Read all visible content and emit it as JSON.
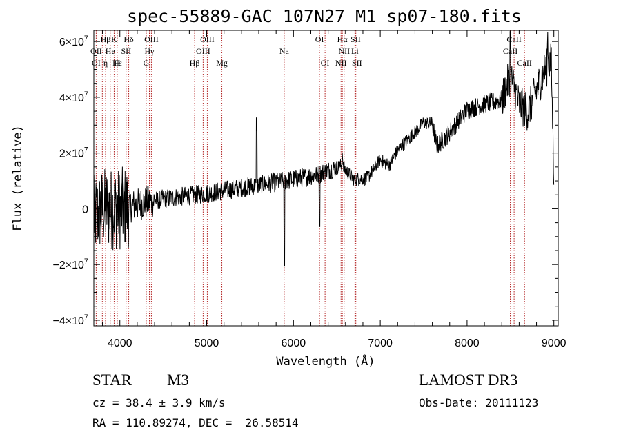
{
  "chart_data": {
    "type": "line",
    "title": "spec-55889-GAC_107N27_M1_sp07-180.fits",
    "xlabel": "Wavelength (Å)",
    "ylabel": "Flux (relative)",
    "xlim": [
      3700,
      9050
    ],
    "ylim": [
      -42000000.0,
      64000000.0
    ],
    "x_ticks": [
      4000,
      5000,
      6000,
      7000,
      8000,
      9000
    ],
    "x_tick_labels": [
      "4000",
      "5000",
      "6000",
      "7000",
      "8000",
      "9000"
    ],
    "y_ticks": [
      {
        "value": -40000000.0,
        "mantissa": "−4×10",
        "exp": "7"
      },
      {
        "value": -20000000.0,
        "mantissa": "−2×10",
        "exp": "7"
      },
      {
        "value": 0,
        "mantissa": "0",
        "exp": ""
      },
      {
        "value": 20000000.0,
        "mantissa": "2×10",
        "exp": "7"
      },
      {
        "value": 40000000.0,
        "mantissa": "4×10",
        "exp": "7"
      },
      {
        "value": 60000000.0,
        "mantissa": "6×10",
        "exp": "7"
      }
    ],
    "continuum": [
      [
        3700,
        -3000000.0
      ],
      [
        3800,
        0.0
      ],
      [
        4000,
        0.0
      ],
      [
        4200,
        1500000.0
      ],
      [
        4500,
        3500000.0
      ],
      [
        5000,
        5500000.0
      ],
      [
        5500,
        8000000.0
      ],
      [
        6000,
        10500000.0
      ],
      [
        6300,
        12500000.0
      ],
      [
        6550,
        15500000.0
      ],
      [
        6700,
        10500000.0
      ],
      [
        6850,
        11000000.0
      ],
      [
        7000,
        17500000.0
      ],
      [
        7100,
        15500000.0
      ],
      [
        7200,
        21000000.0
      ],
      [
        7400,
        27500000.0
      ],
      [
        7500,
        31000000.0
      ],
      [
        7600,
        30500000.0
      ],
      [
        7650,
        22500000.0
      ],
      [
        7750,
        25500000.0
      ],
      [
        8000,
        35500000.0
      ],
      [
        8200,
        37500000.0
      ],
      [
        8400,
        39000000.0
      ],
      [
        8500,
        48000000.0
      ],
      [
        8600,
        37500000.0
      ],
      [
        8700,
        34500000.0
      ],
      [
        8800,
        42500000.0
      ],
      [
        8900,
        50000000.0
      ],
      [
        8970,
        53000000.0
      ],
      [
        9000,
        12000000.0
      ]
    ],
    "features": [
      {
        "x": 5577,
        "dy": 22000000.0
      },
      {
        "x": 5893,
        "dy": -29000000.0
      },
      {
        "x": 6300,
        "dy": -16000000.0
      },
      {
        "x": 6563,
        "dy": 5000000.0
      },
      {
        "x": 8498,
        "dy": 13000000.0
      },
      {
        "x": 8930,
        "dy": 10000000.0
      }
    ],
    "spectral_lines": [
      {
        "label": "Hβ",
        "x": 3835,
        "row": 0
      },
      {
        "label": "K",
        "x": 3934,
        "row": 0
      },
      {
        "label": "Hδ",
        "x": 4102,
        "row": 0
      },
      {
        "label": "OIII",
        "x": 4363,
        "row": 0
      },
      {
        "label": "OIII",
        "x": 5007,
        "row": 0
      },
      {
        "label": "OI",
        "x": 6300,
        "row": 0
      },
      {
        "label": "Hα",
        "x": 6563,
        "row": 0
      },
      {
        "label": "SII",
        "x": 6716,
        "row": 0
      },
      {
        "label": "CaII",
        "x": 8542,
        "row": 0
      },
      {
        "label": "OII",
        "x": 3727,
        "row": 1
      },
      {
        "label": "He",
        "x": 3889,
        "row": 1
      },
      {
        "label": "SII",
        "x": 4072,
        "row": 1
      },
      {
        "label": "Hγ",
        "x": 4340,
        "row": 1
      },
      {
        "label": "OIII",
        "x": 4959,
        "row": 1
      },
      {
        "label": "Na",
        "x": 5893,
        "row": 1
      },
      {
        "label": "NII",
        "x": 6584,
        "row": 1
      },
      {
        "label": "Li",
        "x": 6708,
        "row": 1
      },
      {
        "label": "CaII",
        "x": 8498,
        "row": 1
      },
      {
        "label": "OI",
        "x": 3727,
        "row": 2
      },
      {
        "label": "Hε",
        "x": 3970,
        "row": 2
      },
      {
        "label": "η",
        "x": 3835,
        "row": 2
      },
      {
        "label": "H",
        "x": 3968,
        "row": 2
      },
      {
        "label": "G",
        "x": 4304,
        "row": 2
      },
      {
        "label": "Hβ",
        "x": 4861,
        "row": 2
      },
      {
        "label": "Mg",
        "x": 5175,
        "row": 2
      },
      {
        "label": "OI",
        "x": 6364,
        "row": 2
      },
      {
        "label": "NII",
        "x": 6548,
        "row": 2
      },
      {
        "label": "SII",
        "x": 6731,
        "row": 2
      },
      {
        "label": "CaII",
        "x": 8662,
        "row": 2
      }
    ],
    "line_marks": [
      3727,
      3798,
      3835,
      3889,
      3934,
      3970,
      4072,
      4102,
      4304,
      4340,
      4363,
      4861,
      4959,
      5007,
      5175,
      5893,
      6300,
      6364,
      6548,
      6563,
      6584,
      6708,
      6716,
      6731,
      8498,
      8542,
      8662
    ]
  },
  "info": {
    "class": "STAR",
    "subclass": "M3",
    "cz": "cz = 38.4 ± 3.9 km/s",
    "coords": "RA = 110.89274, DEC =  26.58514",
    "survey": "LAMOST DR3",
    "obs_date": "Obs-Date: 20111123"
  },
  "colors": {
    "axis": "#000000",
    "spectrum": "#000000",
    "line_marker": "#b22222"
  }
}
